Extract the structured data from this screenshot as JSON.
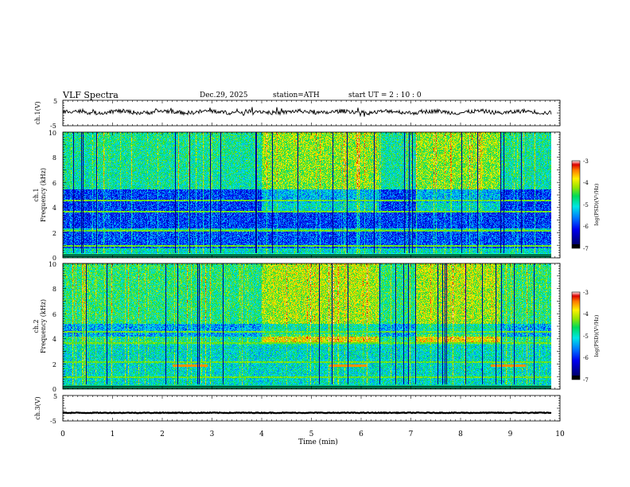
{
  "header": {
    "title": "VLF  Spectra",
    "date": "Dec.29, 2025",
    "station": "station=ATH",
    "start": "start  UT  =   2 : 10 : 0"
  },
  "chart_data": [
    {
      "type": "line",
      "name": "ch1-waveform",
      "ylabel": "ch.1(V)",
      "ylim": [
        -5,
        5
      ],
      "yticks": [
        "5",
        "-5"
      ],
      "xlim": [
        0,
        10
      ],
      "level_volts": 0.4,
      "color": "#000000"
    },
    {
      "type": "heatmap",
      "name": "ch1-spectrogram",
      "ylabel_top": "ch.1",
      "ylabel": "Frequency  (kHz)",
      "ylim": [
        0,
        10
      ],
      "yticks": [
        "0",
        "2",
        "4",
        "6",
        "8",
        "10"
      ],
      "xlim": [
        0,
        9.8
      ],
      "colorbar": {
        "label": "log(PSD)(V²/Hz)",
        "range": [
          -7,
          -3
        ],
        "ticks": [
          "-3",
          "-4",
          "-5",
          "-6",
          "-7"
        ]
      }
    },
    {
      "type": "heatmap",
      "name": "ch2-spectrogram",
      "ylabel_top": "ch.2",
      "ylabel": "Frequency  (kHz)",
      "ylim": [
        0,
        10
      ],
      "yticks": [
        "0",
        "2",
        "4",
        "6",
        "8",
        "10"
      ],
      "xlim": [
        0,
        9.8
      ],
      "colorbar": {
        "label": "log(PSD)(V²/Hz)",
        "range": [
          -7,
          -3
        ],
        "ticks": [
          "-3",
          "-4",
          "-5",
          "-6",
          "-7"
        ]
      }
    },
    {
      "type": "line",
      "name": "ch3-waveform",
      "ylabel": "ch.3(V)",
      "ylim": [
        -5,
        5
      ],
      "yticks": [
        "5",
        "-5"
      ],
      "xlim": [
        0,
        10
      ],
      "level_volts": -1.8,
      "color": "#000000"
    }
  ],
  "xaxis": {
    "label": "Time  (min)",
    "ticks": [
      "0",
      "1",
      "2",
      "3",
      "4",
      "5",
      "6",
      "7",
      "8",
      "9",
      "10"
    ],
    "range": [
      0,
      10
    ]
  }
}
